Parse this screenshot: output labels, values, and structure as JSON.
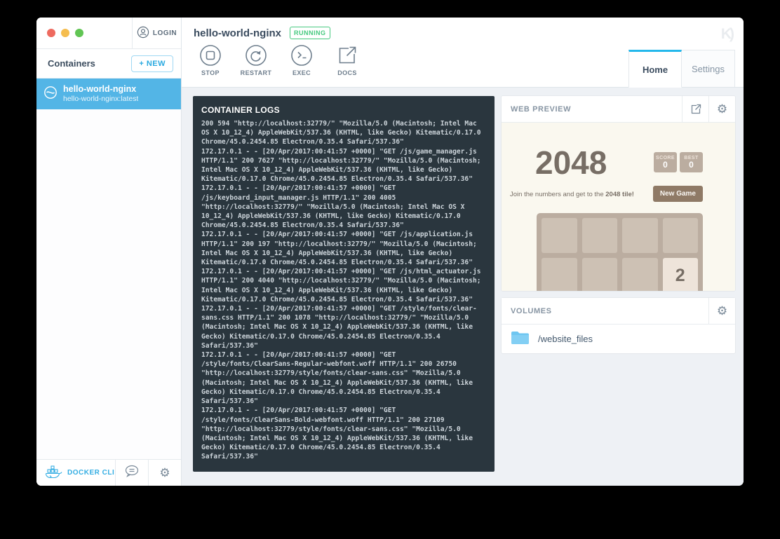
{
  "window": {
    "login_label": "LOGIN",
    "logo_mark": "K)"
  },
  "sidebar": {
    "title": "Containers",
    "new_button_label": "+ NEW",
    "containers": [
      {
        "name": "hello-world-nginx",
        "image": "hello-world-nginx:latest"
      }
    ],
    "footer": {
      "docker_cli_label": "DOCKER CLI"
    }
  },
  "header": {
    "container_name": "hello-world-nginx",
    "status": "RUNNING",
    "toolbar": {
      "stop": "STOP",
      "restart": "RESTART",
      "exec": "EXEC",
      "docs": "DOCS"
    },
    "tabs": {
      "home": "Home",
      "settings": "Settings"
    }
  },
  "logs": {
    "title": "CONTAINER LOGS",
    "lines": [
      "200 594 \"http://localhost:32779/\" \"Mozilla/5.0 (Macintosh; Intel Mac",
      "OS X 10_12_4) AppleWebKit/537.36 (KHTML, like Gecko) Kitematic/0.17.0",
      "Chrome/45.0.2454.85 Electron/0.35.4 Safari/537.36\"",
      "172.17.0.1 - - [20/Apr/2017:00:41:57 +0000] \"GET /js/game_manager.js",
      "HTTP/1.1\" 200 7627 \"http://localhost:32779/\" \"Mozilla/5.0 (Macintosh;",
      "Intel Mac OS X 10_12_4) AppleWebKit/537.36 (KHTML, like Gecko)",
      "Kitematic/0.17.0 Chrome/45.0.2454.85 Electron/0.35.4 Safari/537.36\"",
      "172.17.0.1 - - [20/Apr/2017:00:41:57 +0000] \"GET",
      "/js/keyboard_input_manager.js HTTP/1.1\" 200 4005",
      "\"http://localhost:32779/\" \"Mozilla/5.0 (Macintosh; Intel Mac OS X",
      "10_12_4) AppleWebKit/537.36 (KHTML, like Gecko) Kitematic/0.17.0",
      "Chrome/45.0.2454.85 Electron/0.35.4 Safari/537.36\"",
      "172.17.0.1 - - [20/Apr/2017:00:41:57 +0000] \"GET /js/application.js",
      "HTTP/1.1\" 200 197 \"http://localhost:32779/\" \"Mozilla/5.0 (Macintosh;",
      "Intel Mac OS X 10_12_4) AppleWebKit/537.36 (KHTML, like Gecko)",
      "Kitematic/0.17.0 Chrome/45.0.2454.85 Electron/0.35.4 Safari/537.36\"",
      "172.17.0.1 - - [20/Apr/2017:00:41:57 +0000] \"GET /js/html_actuator.js",
      "HTTP/1.1\" 200 4040 \"http://localhost:32779/\" \"Mozilla/5.0 (Macintosh;",
      "Intel Mac OS X 10_12_4) AppleWebKit/537.36 (KHTML, like Gecko)",
      "Kitematic/0.17.0 Chrome/45.0.2454.85 Electron/0.35.4 Safari/537.36\"",
      "172.17.0.1 - - [20/Apr/2017:00:41:57 +0000] \"GET /style/fonts/clear-",
      "sans.css HTTP/1.1\" 200 1078 \"http://localhost:32779/\" \"Mozilla/5.0",
      "(Macintosh; Intel Mac OS X 10_12_4) AppleWebKit/537.36 (KHTML, like",
      "Gecko) Kitematic/0.17.0 Chrome/45.0.2454.85 Electron/0.35.4",
      "Safari/537.36\"",
      "172.17.0.1 - - [20/Apr/2017:00:41:57 +0000] \"GET",
      "/style/fonts/ClearSans-Regular-webfont.woff HTTP/1.1\" 200 26750",
      "\"http://localhost:32779/style/fonts/clear-sans.css\" \"Mozilla/5.0",
      "(Macintosh; Intel Mac OS X 10_12_4) AppleWebKit/537.36 (KHTML, like",
      "Gecko) Kitematic/0.17.0 Chrome/45.0.2454.85 Electron/0.35.4",
      "Safari/537.36\"",
      "172.17.0.1 - - [20/Apr/2017:00:41:57 +0000] \"GET",
      "/style/fonts/ClearSans-Bold-webfont.woff HTTP/1.1\" 200 27109",
      "\"http://localhost:32779/style/fonts/clear-sans.css\" \"Mozilla/5.0",
      "(Macintosh; Intel Mac OS X 10_12_4) AppleWebKit/537.36 (KHTML, like",
      "Gecko) Kitematic/0.17.0 Chrome/45.0.2454.85 Electron/0.35.4",
      "Safari/537.36\""
    ]
  },
  "web_preview": {
    "title": "WEB PREVIEW",
    "game": {
      "title": "2048",
      "score_label": "SCORE",
      "score_value": "0",
      "best_label": "BEST",
      "best_value": "0",
      "tagline_prefix": "Join the numbers and get to the ",
      "tagline_bold": "2048 tile!",
      "new_game_label": "New Game",
      "tile_value": "2"
    }
  },
  "volumes": {
    "title": "VOLUMES",
    "items": [
      {
        "path": "/website_files"
      }
    ]
  },
  "colors": {
    "accent_blue": "#24b8eb",
    "selected_blue": "#53b5e6",
    "running_green": "#45c97e",
    "logs_bg": "#2a363e",
    "game_bg": "#faf8ef",
    "game_text": "#776e65",
    "game_grid": "#bbada0",
    "game_cell": "#cdc1b4",
    "game_tile2": "#eee4da",
    "game_button": "#8f7a66"
  }
}
